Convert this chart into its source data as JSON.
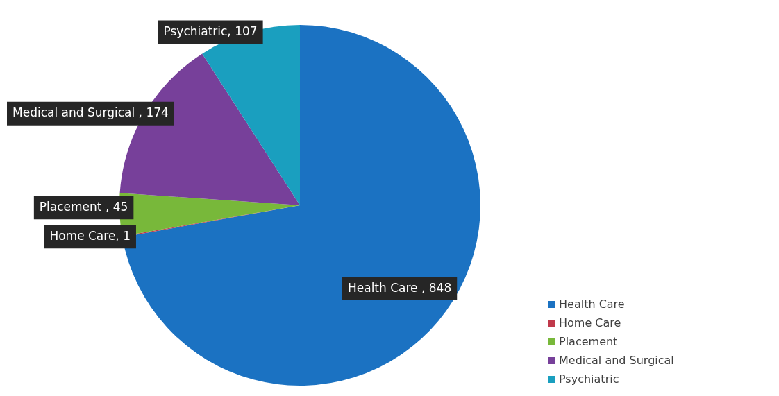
{
  "chart_data": {
    "type": "pie",
    "categories": [
      "Health Care",
      "Home Care",
      "Placement",
      "Medical and Surgical",
      "Psychiatric"
    ],
    "values": [
      848,
      1,
      45,
      174,
      107
    ],
    "colors": [
      "#1b72c2",
      "#c0394b",
      "#78b83a",
      "#77409a",
      "#1a9fbf"
    ],
    "value_labels": [
      "Health Care , 848",
      "Home Care, 1",
      "Placement , 45",
      "Medical and Surgical , 174",
      "Psychiatric, 107"
    ],
    "legend": "bottom right"
  }
}
